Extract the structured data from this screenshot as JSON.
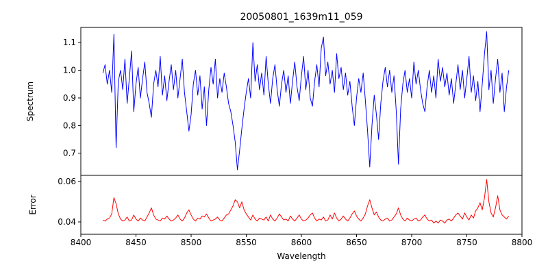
{
  "figure": {
    "background": "#ffffff"
  },
  "chart_data": {
    "type": "line",
    "title": "20050801_1639m11_059",
    "xlabel": "Wavelength",
    "grid": false,
    "legend": "none",
    "xlim": [
      8400,
      8800
    ],
    "xticks": [
      8400,
      8450,
      8500,
      8550,
      8600,
      8650,
      8700,
      8750,
      8800
    ],
    "panels": [
      {
        "ylabel": "Spectrum",
        "ylim": [
          0.62,
          1.155
        ],
        "yticks": [
          "1.1",
          "1.0",
          "0.9",
          "0.8",
          "0.7"
        ]
      },
      {
        "ylabel": "Error",
        "ylim": [
          0.034,
          0.063
        ],
        "yticks": [
          "0.06",
          "0.04"
        ]
      }
    ],
    "x": [
      8420,
      8422,
      8424,
      8426,
      8428,
      8430,
      8432,
      8434,
      8436,
      8438,
      8440,
      8442,
      8444,
      8446,
      8448,
      8450,
      8452,
      8454,
      8456,
      8458,
      8460,
      8462,
      8464,
      8466,
      8468,
      8470,
      8472,
      8474,
      8476,
      8478,
      8480,
      8482,
      8484,
      8486,
      8488,
      8490,
      8492,
      8494,
      8496,
      8498,
      8500,
      8502,
      8504,
      8506,
      8508,
      8510,
      8512,
      8514,
      8516,
      8518,
      8520,
      8522,
      8524,
      8526,
      8528,
      8530,
      8532,
      8534,
      8536,
      8538,
      8540,
      8542,
      8544,
      8546,
      8548,
      8550,
      8552,
      8554,
      8556,
      8558,
      8560,
      8562,
      8564,
      8566,
      8568,
      8570,
      8572,
      8574,
      8576,
      8578,
      8580,
      8582,
      8584,
      8586,
      8588,
      8590,
      8592,
      8594,
      8596,
      8598,
      8600,
      8602,
      8604,
      8606,
      8608,
      8610,
      8612,
      8614,
      8616,
      8618,
      8620,
      8622,
      8624,
      8626,
      8628,
      8630,
      8632,
      8634,
      8636,
      8638,
      8640,
      8642,
      8644,
      8646,
      8648,
      8650,
      8652,
      8654,
      8656,
      8658,
      8660,
      8662,
      8664,
      8666,
      8668,
      8670,
      8672,
      8674,
      8676,
      8678,
      8680,
      8682,
      8684,
      8686,
      8688,
      8690,
      8692,
      8694,
      8696,
      8698,
      8700,
      8702,
      8704,
      8706,
      8708,
      8710,
      8712,
      8714,
      8716,
      8718,
      8720,
      8722,
      8724,
      8726,
      8728,
      8730,
      8732,
      8734,
      8736,
      8738,
      8740,
      8742,
      8744,
      8746,
      8748,
      8750,
      8752,
      8754,
      8756,
      8758,
      8760,
      8762,
      8764,
      8766,
      8768,
      8770,
      8772,
      8774,
      8776,
      8778,
      8780,
      8782,
      8784,
      8786,
      8788
    ],
    "series": [
      {
        "name": "spectrum",
        "color": "#0000ff",
        "panel": 0,
        "values": [
          0.99,
          1.02,
          0.95,
          1.0,
          0.92,
          1.13,
          0.72,
          0.96,
          1.0,
          0.93,
          1.04,
          0.88,
          0.97,
          1.07,
          0.85,
          0.95,
          1.01,
          0.9,
          0.97,
          1.03,
          0.92,
          0.88,
          0.83,
          0.95,
          1.0,
          0.94,
          1.05,
          0.91,
          0.98,
          0.89,
          0.96,
          1.02,
          0.93,
          1.0,
          0.9,
          0.97,
          1.04,
          0.92,
          0.85,
          0.78,
          0.84,
          0.95,
          1.0,
          0.91,
          0.98,
          0.86,
          0.94,
          0.8,
          0.93,
          1.01,
          0.95,
          1.04,
          0.9,
          0.97,
          0.92,
          0.99,
          0.94,
          0.88,
          0.85,
          0.8,
          0.74,
          0.64,
          0.71,
          0.79,
          0.86,
          0.92,
          0.97,
          0.9,
          1.1,
          0.96,
          1.02,
          0.93,
          0.99,
          0.91,
          1.05,
          0.95,
          0.88,
          0.97,
          1.02,
          0.93,
          0.87,
          0.95,
          1.0,
          0.92,
          0.98,
          0.88,
          0.96,
          1.03,
          0.94,
          0.89,
          0.98,
          1.05,
          0.93,
          1.0,
          0.9,
          0.87,
          0.96,
          1.02,
          0.94,
          1.08,
          1.12,
          0.98,
          1.03,
          0.95,
          1.0,
          0.92,
          1.06,
          0.97,
          1.01,
          0.93,
          0.99,
          0.91,
          0.96,
          0.87,
          0.8,
          0.9,
          0.97,
          0.92,
          0.99,
          0.89,
          0.78,
          0.65,
          0.8,
          0.91,
          0.84,
          0.75,
          0.88,
          0.96,
          1.01,
          0.94,
          1.0,
          0.92,
          0.98,
          0.85,
          0.66,
          0.86,
          0.95,
          1.0,
          0.92,
          0.97,
          0.9,
          1.03,
          0.95,
          1.0,
          0.93,
          0.88,
          0.85,
          0.94,
          1.0,
          0.92,
          0.98,
          0.9,
          1.04,
          0.96,
          1.01,
          0.94,
          0.99,
          0.91,
          0.97,
          0.88,
          0.95,
          1.02,
          0.93,
          1.0,
          0.9,
          0.97,
          1.05,
          0.92,
          0.98,
          0.89,
          0.96,
          0.85,
          0.95,
          1.06,
          1.14,
          0.93,
          1.0,
          0.88,
          0.97,
          1.04,
          0.92,
          0.99,
          0.85,
          0.94,
          1.0
        ]
      },
      {
        "name": "error",
        "color": "#ff0000",
        "panel": 1,
        "values": [
          0.041,
          0.0405,
          0.0415,
          0.042,
          0.044,
          0.052,
          0.049,
          0.044,
          0.0415,
          0.0405,
          0.041,
          0.0425,
          0.0405,
          0.041,
          0.0435,
          0.0415,
          0.0405,
          0.042,
          0.041,
          0.0405,
          0.0425,
          0.0445,
          0.047,
          0.0435,
          0.0415,
          0.041,
          0.0405,
          0.042,
          0.0415,
          0.043,
          0.0415,
          0.0405,
          0.041,
          0.042,
          0.0435,
          0.0415,
          0.0405,
          0.042,
          0.0445,
          0.046,
          0.0435,
          0.0415,
          0.0405,
          0.042,
          0.0415,
          0.043,
          0.0425,
          0.044,
          0.042,
          0.0405,
          0.041,
          0.0415,
          0.0425,
          0.041,
          0.0405,
          0.042,
          0.0435,
          0.044,
          0.046,
          0.048,
          0.051,
          0.05,
          0.047,
          0.05,
          0.046,
          0.044,
          0.0425,
          0.041,
          0.0435,
          0.0415,
          0.0405,
          0.042,
          0.0415,
          0.041,
          0.0425,
          0.0405,
          0.0435,
          0.0415,
          0.0405,
          0.042,
          0.044,
          0.0425,
          0.041,
          0.0415,
          0.0405,
          0.043,
          0.0415,
          0.0405,
          0.042,
          0.0435,
          0.0415,
          0.0405,
          0.041,
          0.042,
          0.0435,
          0.0445,
          0.042,
          0.0405,
          0.0415,
          0.041,
          0.0425,
          0.0405,
          0.041,
          0.0435,
          0.0415,
          0.0445,
          0.042,
          0.0405,
          0.0415,
          0.043,
          0.0415,
          0.0405,
          0.042,
          0.044,
          0.0455,
          0.043,
          0.0415,
          0.0405,
          0.042,
          0.044,
          0.048,
          0.051,
          0.047,
          0.0435,
          0.045,
          0.0425,
          0.041,
          0.0405,
          0.0415,
          0.042,
          0.0405,
          0.041,
          0.0425,
          0.044,
          0.047,
          0.0435,
          0.0415,
          0.0405,
          0.042,
          0.041,
          0.0405,
          0.0415,
          0.042,
          0.0405,
          0.041,
          0.0425,
          0.0435,
          0.0415,
          0.0405,
          0.041,
          0.0395,
          0.0405,
          0.0395,
          0.041,
          0.0405,
          0.0395,
          0.041,
          0.0415,
          0.0405,
          0.042,
          0.0435,
          0.0445,
          0.043,
          0.0415,
          0.0445,
          0.0425,
          0.041,
          0.0435,
          0.042,
          0.0455,
          0.047,
          0.0495,
          0.046,
          0.052,
          0.061,
          0.05,
          0.0445,
          0.0425,
          0.047,
          0.053,
          0.046,
          0.0435,
          0.0425,
          0.0415,
          0.043
        ]
      }
    ]
  }
}
